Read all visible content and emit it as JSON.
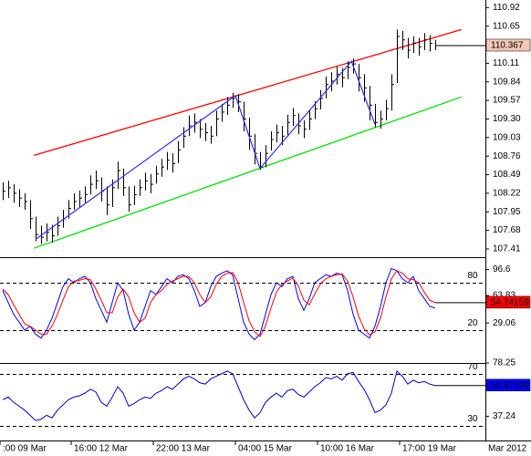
{
  "chart_data": [
    {
      "type": "ohlc",
      "ylim": [
        107.29,
        111.03
      ],
      "yticks": [
        110.92,
        110.65,
        110.11,
        109.84,
        109.57,
        {
          "value": 109.3,
          "label": "109.30"
        },
        109.03,
        108.76,
        108.49,
        108.22,
        107.95,
        107.68,
        107.41
      ],
      "xticks": [
        {
          "value": -0.5,
          "label": ":00 09 Mar"
        },
        {
          "value": 12.5,
          "label": "16:00 12 Mar"
        },
        {
          "value": 27.5,
          "label": "22:00 13 Mar"
        },
        {
          "value": 42.5,
          "label": "04:00 15 Mar"
        },
        {
          "value": 57.5,
          "label": "10:00 16 Mar"
        },
        {
          "value": 72.5,
          "label": "17:00 19 Mar"
        }
      ],
      "date_label": "Mar 2012",
      "color": "#000000",
      "label_fill": "#f4c7b4",
      "label_text_color": "#000000",
      "high": [
        108.38,
        108.4,
        108.35,
        108.28,
        108.22,
        108.12,
        107.88,
        107.75,
        107.78,
        107.76,
        107.88,
        107.98,
        108.12,
        108.22,
        108.26,
        108.32,
        108.48,
        108.55,
        108.45,
        108.32,
        108.42,
        108.68,
        108.58,
        108.32,
        108.33,
        108.42,
        108.52,
        108.5,
        108.62,
        108.72,
        108.82,
        108.8,
        108.98,
        109.18,
        109.35,
        109.38,
        109.3,
        109.24,
        109.2,
        109.42,
        109.52,
        109.62,
        109.68,
        109.66,
        109.55,
        109.32,
        109.08,
        108.82,
        108.92,
        109.12,
        109.22,
        109.2,
        109.36,
        109.46,
        109.38,
        109.28,
        109.42,
        109.56,
        109.72,
        109.92,
        109.98,
        110.06,
        110.04,
        110.14,
        110.18,
        110.1,
        109.95,
        109.78,
        109.52,
        109.42,
        109.58,
        109.95,
        110.6,
        110.58,
        110.48,
        110.5,
        110.48,
        110.55,
        110.52,
        110.45
      ],
      "low": [
        108.12,
        108.15,
        108.08,
        108.02,
        107.98,
        107.7,
        107.52,
        107.48,
        107.52,
        107.5,
        107.6,
        107.72,
        107.85,
        107.98,
        108.02,
        108.08,
        108.2,
        108.28,
        108.1,
        107.9,
        108.02,
        108.28,
        108.18,
        107.95,
        108.05,
        108.18,
        108.26,
        108.22,
        108.36,
        108.46,
        108.56,
        108.52,
        108.66,
        108.88,
        109.05,
        109.1,
        109.02,
        108.98,
        108.94,
        109.05,
        109.26,
        109.36,
        109.46,
        109.4,
        109.12,
        108.85,
        108.64,
        108.56,
        108.6,
        108.84,
        108.96,
        108.92,
        109.06,
        109.2,
        109.08,
        109.02,
        109.14,
        109.3,
        109.44,
        109.6,
        109.7,
        109.8,
        109.76,
        109.88,
        109.96,
        109.7,
        109.55,
        109.28,
        109.18,
        109.16,
        109.28,
        109.42,
        109.82,
        110.3,
        110.18,
        110.26,
        110.22,
        110.3,
        110.28,
        110.3
      ],
      "close": [
        108.25,
        108.3,
        108.22,
        108.15,
        108.1,
        107.85,
        107.62,
        107.58,
        107.65,
        107.6,
        107.75,
        107.85,
        108.0,
        108.1,
        108.15,
        108.2,
        108.35,
        108.4,
        108.25,
        108.05,
        108.3,
        108.55,
        108.3,
        108.05,
        108.2,
        108.3,
        108.4,
        108.35,
        108.5,
        108.6,
        108.7,
        108.65,
        108.85,
        109.05,
        109.2,
        109.25,
        109.15,
        109.1,
        109.05,
        109.3,
        109.4,
        109.5,
        109.6,
        109.55,
        109.3,
        109.05,
        108.8,
        108.6,
        108.8,
        109.0,
        109.1,
        109.05,
        109.25,
        109.35,
        109.2,
        109.15,
        109.3,
        109.45,
        109.6,
        109.8,
        109.85,
        109.95,
        109.9,
        110.05,
        110.1,
        109.9,
        109.75,
        109.5,
        109.25,
        109.3,
        109.45,
        109.8,
        110.5,
        110.45,
        110.3,
        110.4,
        110.35,
        110.45,
        110.4,
        110.367
      ],
      "channels": [
        {
          "x": [
            5.7,
            83.8
          ],
          "values": [
            108.77,
            110.6
          ],
          "color": "#ff0000"
        },
        {
          "x": [
            5.7,
            83.8
          ],
          "values": [
            107.42,
            109.62
          ],
          "color": "#00e000"
        }
      ],
      "zigzag": {
        "x": [
          6,
          42.5,
          47,
          63.7,
          68
        ],
        "values": [
          107.55,
          109.64,
          108.58,
          110.14,
          109.22
        ],
        "color": "#2a2aff"
      }
    },
    {
      "type": "line",
      "ylim": [
        -21.5,
        111.1
      ],
      "yticks": [
        96.6,
        63.83,
        29.06
      ],
      "levels": [
        80,
        20
      ],
      "series": [
        {
          "color": "#0000ff",
          "values": [
            70,
            55,
            40,
            30,
            20,
            25,
            15,
            10,
            20,
            35,
            55,
            75,
            85,
            80,
            85,
            88,
            80,
            60,
            45,
            30,
            55,
            80,
            70,
            40,
            20,
            30,
            50,
            70,
            65,
            75,
            85,
            80,
            88,
            90,
            85,
            70,
            50,
            55,
            75,
            88,
            92,
            95,
            90,
            60,
            30,
            15,
            8,
            15,
            40,
            65,
            80,
            75,
            85,
            88,
            60,
            45,
            60,
            80,
            85,
            90,
            88,
            92,
            90,
            70,
            40,
            20,
            15,
            10,
            25,
            50,
            80,
            98,
            95,
            85,
            80,
            88,
            70,
            60,
            50,
            48
          ]
        },
        {
          "color": "#ff0000",
          "label_fill": "#ff0000",
          "label_text_color": "#000000",
          "values": [
            72,
            65,
            52,
            40,
            28,
            25,
            20,
            15,
            15,
            25,
            40,
            58,
            75,
            82,
            83,
            85,
            84,
            72,
            58,
            42,
            42,
            62,
            72,
            62,
            42,
            30,
            35,
            55,
            65,
            70,
            78,
            82,
            85,
            88,
            88,
            80,
            65,
            55,
            62,
            78,
            88,
            92,
            93,
            80,
            55,
            32,
            18,
            12,
            25,
            48,
            68,
            78,
            82,
            86,
            76,
            58,
            52,
            66,
            78,
            85,
            88,
            90,
            91,
            82,
            62,
            38,
            22,
            14,
            18,
            35,
            62,
            85,
            95,
            92,
            85,
            84,
            80,
            68,
            58,
            54.74159
          ]
        }
      ]
    },
    {
      "type": "line",
      "ylim": [
        18.6,
        78.25
      ],
      "yticks": [
        78.25,
        37.24
      ],
      "levels": [
        70,
        30
      ],
      "series": [
        {
          "color": "#0000cc",
          "label_fill": "#0000ff",
          "label_text_color": "#ffffff",
          "values": [
            50,
            52,
            48,
            45,
            42,
            38,
            34,
            35,
            38,
            36,
            42,
            46,
            50,
            52,
            53,
            55,
            58,
            56,
            48,
            45,
            52,
            60,
            55,
            45,
            47,
            50,
            52,
            51,
            55,
            57,
            60,
            58,
            62,
            66,
            68,
            66,
            63,
            62,
            66,
            68,
            70,
            72,
            70,
            60,
            50,
            42,
            36,
            40,
            48,
            52,
            55,
            52,
            57,
            58,
            54,
            52,
            56,
            60,
            63,
            67,
            66,
            68,
            65,
            70,
            71,
            64,
            58,
            50,
            40,
            42,
            46,
            55,
            72,
            68,
            62,
            65,
            63,
            64,
            62,
            60.87199
          ]
        }
      ]
    }
  ]
}
